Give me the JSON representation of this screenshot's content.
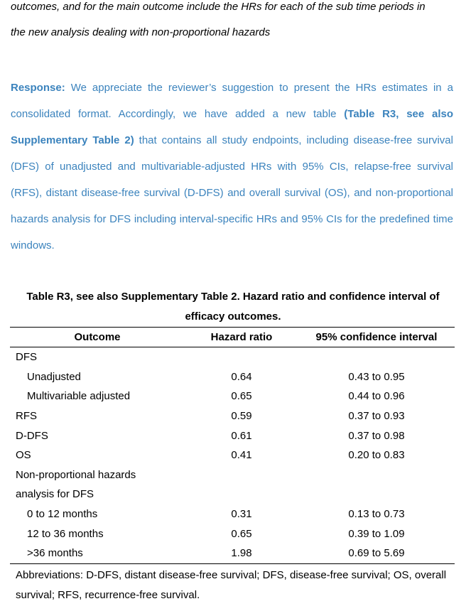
{
  "intro": {
    "line1": "outcomes, and for the main outcome include the HRs for each of the sub time periods in",
    "line2": "the new analysis dealing with non-proportional hazards"
  },
  "response": {
    "label": "Response:",
    "text1": " We appreciate the reviewer’s suggestion to present the HRs estimates in a consolidated format. Accordingly, we have added a new table ",
    "bold_ref": "(Table R3, see also Supplementary Table 2)",
    "text2": " that contains all study endpoints, including disease-free survival (DFS) of unadjusted and multivariable-adjusted HRs with 95% CIs, relapse-free survival (RFS), distant disease-free survival (D-DFS) and overall survival (OS), and non-proportional hazards analysis for DFS including interval-specific HRs and 95% CIs for the predefined time windows."
  },
  "table": {
    "caption": "Table R3, see also Supplementary Table 2. Hazard ratio and confidence interval of efficacy outcomes.",
    "headers": [
      "Outcome",
      "Hazard ratio",
      "95% confidence interval"
    ],
    "rows": [
      {
        "outcome": "DFS",
        "hr": "",
        "ci": ""
      },
      {
        "outcome": "Unadjusted",
        "hr": "0.64",
        "ci": "0.43 to 0.95"
      },
      {
        "outcome": "Multivariable adjusted",
        "hr": "0.65",
        "ci": "0.44 to 0.96"
      },
      {
        "outcome": "RFS",
        "hr": "0.59",
        "ci": "0.37 to 0.93"
      },
      {
        "outcome": "D-DFS",
        "hr": "0.61",
        "ci": "0.37 to 0.98"
      },
      {
        "outcome": "OS",
        "hr": "0.41",
        "ci": "0.20 to 0.83"
      },
      {
        "outcome": "Non-proportional hazards",
        "hr": "",
        "ci": ""
      },
      {
        "outcome": "analysis for DFS",
        "hr": "",
        "ci": ""
      },
      {
        "outcome": "0 to 12 months",
        "hr": "0.31",
        "ci": "0.13 to 0.73"
      },
      {
        "outcome": "12 to 36 months",
        "hr": "0.65",
        "ci": "0.39 to 1.09"
      },
      {
        "outcome": ">36 months",
        "hr": "1.98",
        "ci": "0.69 to 5.69"
      }
    ],
    "abbreviations": "Abbreviations: D-DFS, distant disease-free survival; DFS, disease-free survival; OS, overall survival; RFS, recurrence-free survival."
  }
}
